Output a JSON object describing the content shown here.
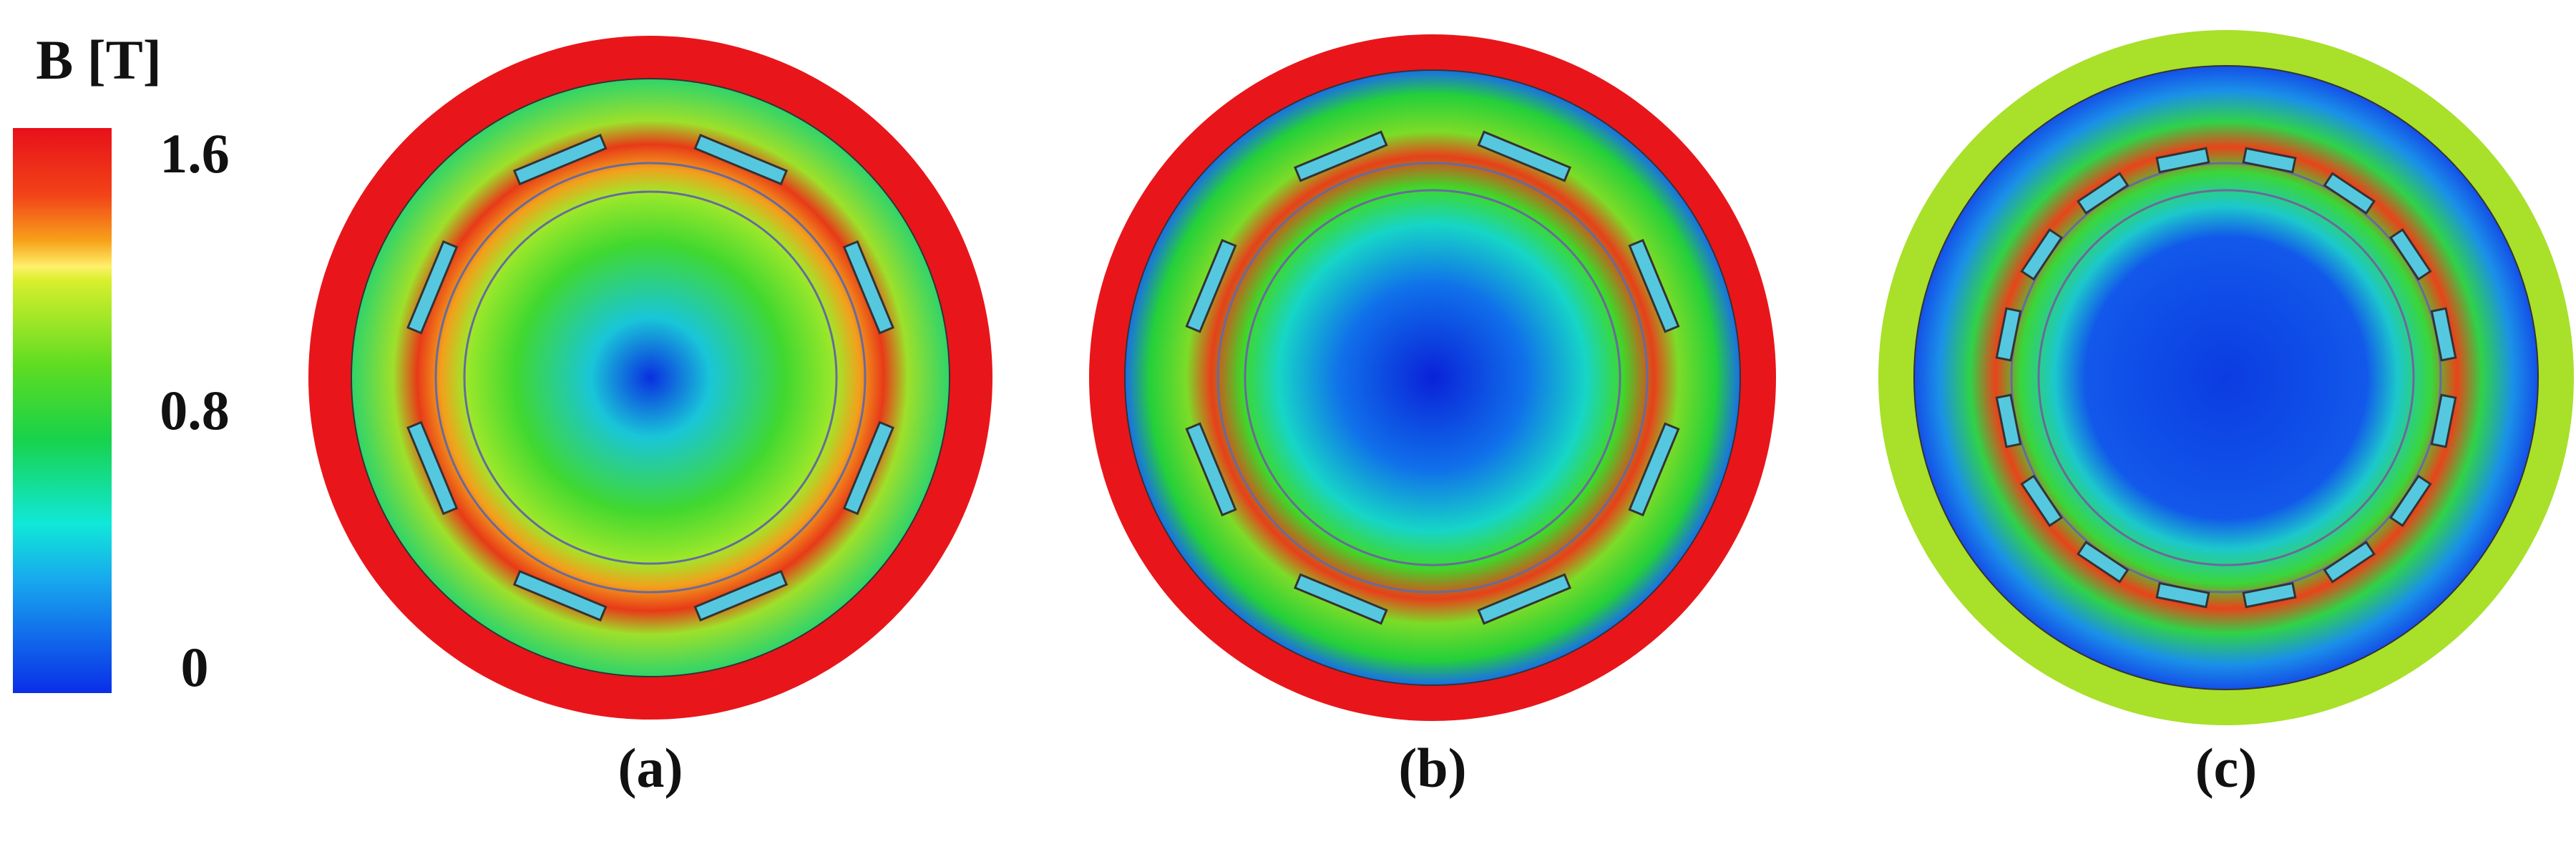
{
  "colorbar": {
    "title": "B [T]",
    "ticks": [
      1.6,
      0.8,
      0
    ]
  },
  "panels": [
    {
      "label": "(a)"
    },
    {
      "label": "(b)"
    },
    {
      "label": "(c)"
    }
  ]
}
